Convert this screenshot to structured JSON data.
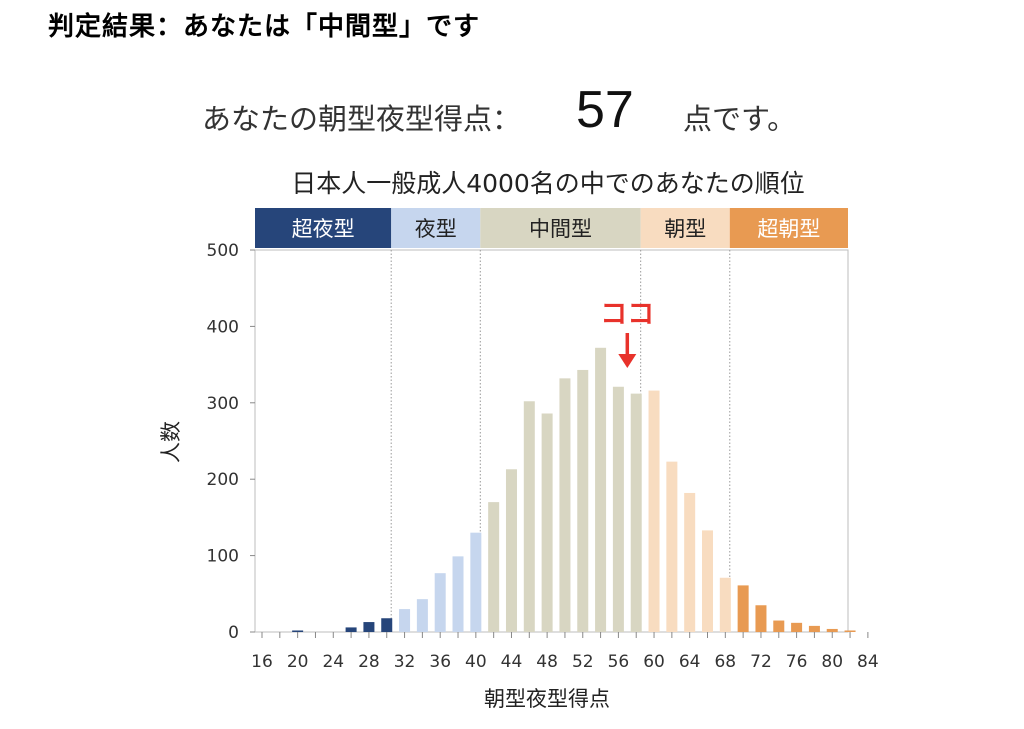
{
  "headline": "判定結果：あなたは「中間型」です",
  "score": {
    "label": "あなたの朝型夜型得点：",
    "value": "57",
    "suffix": "点です。"
  },
  "chart_data": {
    "type": "bar",
    "title": "日本人一般成人4000名の中でのあなたの順位",
    "xlabel": "朝型夜型得点",
    "ylabel": "人数",
    "ylim": [
      0,
      500
    ],
    "yticks": [
      0,
      100,
      200,
      300,
      400,
      500
    ],
    "xticks": [
      16,
      20,
      24,
      28,
      32,
      36,
      40,
      44,
      48,
      52,
      56,
      60,
      64,
      68,
      72,
      76,
      80,
      84
    ],
    "grid": false,
    "x": [
      16,
      18,
      20,
      22,
      24,
      26,
      28,
      30,
      32,
      34,
      36,
      38,
      40,
      42,
      44,
      46,
      48,
      50,
      52,
      54,
      56,
      58,
      60,
      62,
      64,
      66,
      68,
      70,
      72,
      74,
      76,
      78,
      80,
      82,
      84
    ],
    "values": [
      0,
      0,
      2,
      0,
      0,
      6,
      13,
      18,
      30,
      43,
      77,
      99,
      130,
      170,
      213,
      302,
      286,
      332,
      343,
      372,
      321,
      312,
      316,
      223,
      182,
      133,
      71,
      61,
      35,
      15,
      12,
      8,
      4,
      2,
      0
    ],
    "categories_bands": [
      {
        "label": "超夜型",
        "from": 16,
        "to": 30,
        "color": "#26457a",
        "text_color": "#ffffff"
      },
      {
        "label": "夜型",
        "from": 31,
        "to": 41,
        "color": "#c6d6ee",
        "text_color": "#222222"
      },
      {
        "label": "中間型",
        "from": 42,
        "to": 58,
        "color": "#d8d6c2",
        "text_color": "#222222"
      },
      {
        "label": "朝型",
        "from": 59,
        "to": 69,
        "color": "#f8dcc0",
        "text_color": "#222222"
      },
      {
        "label": "超朝型",
        "from": 70,
        "to": 86,
        "color": "#e89a52",
        "text_color": "#ffffff"
      }
    ],
    "band_boundaries": [
      30.5,
      40.5,
      58.5,
      68.5
    ],
    "annotation": {
      "text": "ココ",
      "x": 57,
      "color": "#e8322b"
    }
  }
}
